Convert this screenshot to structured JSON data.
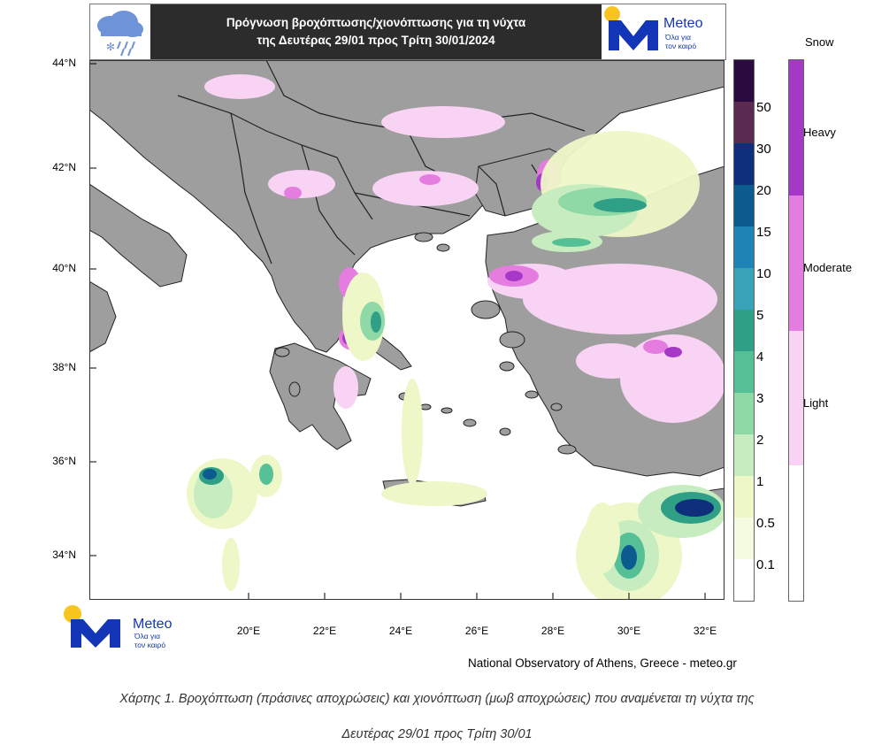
{
  "header": {
    "title_line1": "Πρόγνωση βροχόπτωσης/χιονόπτωσης για τη νύχτα",
    "title_line2": "της Δευτέρας 29/01 προς Τρίτη 30/01/2024",
    "logo_text": "Meteo",
    "logo_tagline_line1": "Όλα για",
    "logo_tagline_line2": "τον καιρό"
  },
  "map": {
    "lat_labels": [
      "44°N",
      "42°N",
      "40°N",
      "38°N",
      "36°N",
      "34°N"
    ],
    "lon_labels": [
      "20°E",
      "22°E",
      "24°E",
      "26°E",
      "28°E",
      "30°E",
      "32°E"
    ],
    "colors": {
      "sea": "#ffffff",
      "land": "#9e9e9e",
      "border": "#222222"
    }
  },
  "rain_legend": {
    "labels": [
      "50",
      "30",
      "20",
      "15",
      "10",
      "5",
      "4",
      "3",
      "2",
      "1",
      "0.5",
      "0.1"
    ],
    "colors": [
      "#2b0b3f",
      "#5a2a52",
      "#0e2f7a",
      "#0b5b8e",
      "#1f84b5",
      "#3aa2b6",
      "#2f9f86",
      "#55bf95",
      "#8fd9a6",
      "#c6ecc0",
      "#eef7c8",
      "#f4fbe0",
      "#ffffff"
    ]
  },
  "snow_legend": {
    "title": "Snow",
    "labels": [
      "Heavy",
      "Moderate",
      "Light"
    ],
    "colors": [
      "#a538c6",
      "#e57ce0",
      "#f9d3f4",
      "#ffffff"
    ]
  },
  "footer": {
    "logo_text": "Meteo",
    "logo_tagline_line1": "Όλα για",
    "logo_tagline_line2": "τον καιρό",
    "credit": "National Observatory of Athens, Greece - meteo.gr",
    "caption_line1": "Χάρτης 1. Βροχόπτωση (πράσινες αποχρώσεις) και χιονόπτωση (μωβ αποχρώσεις) που αναμένεται τη νύχτα της",
    "caption_line2": "Δευτέρας 29/01 προς Τρίτη 30/01"
  }
}
